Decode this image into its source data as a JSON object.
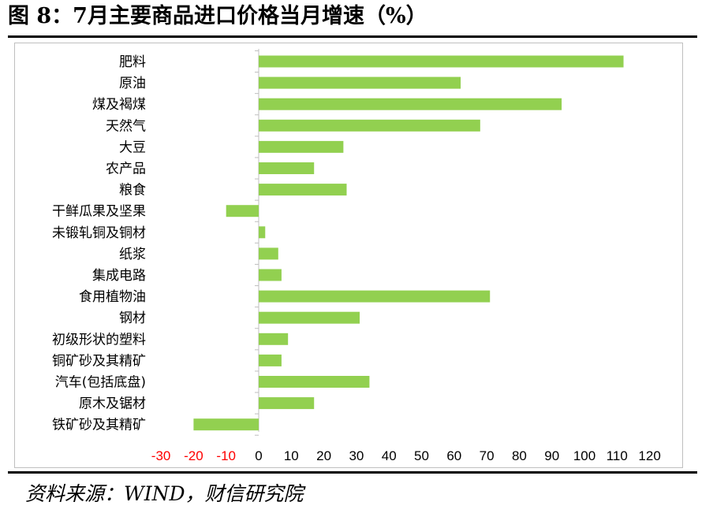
{
  "title": "图 8：7月主要商品进口价格当月增速（%）",
  "source": "资料来源：WIND，财信研究院",
  "colors": {
    "bar": "#92d050",
    "axis": "#bfbfbf",
    "negative_tick": "#ff0000",
    "positive_tick": "#000000"
  },
  "chart_data": {
    "type": "bar",
    "orientation": "horizontal",
    "categories": [
      "肥料",
      "原油",
      "煤及褐煤",
      "天然气",
      "大豆",
      "农产品",
      "粮食",
      "干鲜瓜果及坚果",
      "未锻轧铜及铜材",
      "纸浆",
      "集成电路",
      "食用植物油",
      "钢材",
      "初级形状的塑料",
      "铜矿砂及其精矿",
      "汽车(包括底盘)",
      "原木及锯材",
      "铁矿砂及其精矿"
    ],
    "values": [
      112,
      62,
      93,
      68,
      26,
      17,
      27,
      -10,
      2,
      6,
      7,
      71,
      31,
      9,
      7,
      34,
      17,
      -20
    ],
    "xlim": [
      -30,
      120
    ],
    "xticks": [
      -30,
      -20,
      -10,
      0,
      10,
      20,
      30,
      40,
      50,
      60,
      70,
      80,
      90,
      100,
      110,
      120
    ],
    "xlabel": "",
    "ylabel": "",
    "grid": false,
    "legend": "none"
  }
}
